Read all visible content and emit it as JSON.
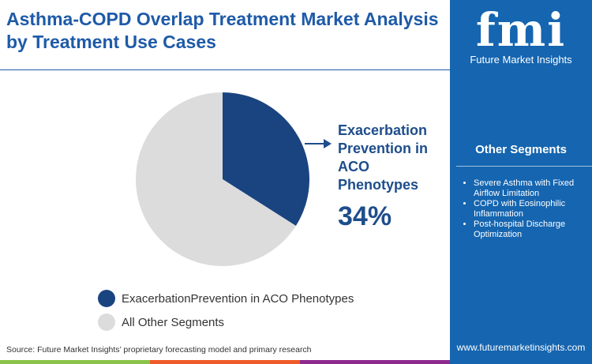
{
  "title": "Asthma-COPD Overlap Treatment Market Analysis by Treatment Use Cases",
  "brand": {
    "logo_text": "fmi",
    "name": "Future Market Insights",
    "url": "www.futuremarketinsights.com"
  },
  "other_segments": {
    "heading": "Other Segments",
    "items": [
      "Severe Asthma with Fixed Airflow Limitation",
      "COPD with Eosinophilic Inflammation",
      "Post-hospital Discharge Optimization"
    ]
  },
  "callout": {
    "label": "Exacerbation Prevention in ACO Phenotypes",
    "value": "34%"
  },
  "source": "Source: Future Market Insights’ proprietary forecasting model and primary research",
  "chart_data": {
    "type": "pie",
    "slices": [
      {
        "name": "ExacerbationPrevention in ACO Phenotypes",
        "value": 34,
        "color": "#1a4480"
      },
      {
        "name": "All Other Segments",
        "value": 66,
        "color": "#dcdcdc"
      }
    ],
    "legend": "bottom-left"
  }
}
